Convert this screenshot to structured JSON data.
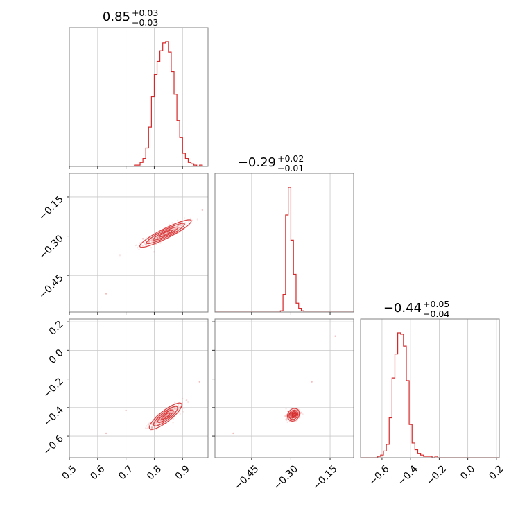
{
  "chart_data": {
    "type": "corner",
    "color": "#d62728",
    "params": [
      {
        "title": {
          "value": "0.85",
          "plus": "+0.03",
          "minus": "−0.03"
        },
        "range": [
          0.5,
          0.99
        ],
        "ticks": [
          0.5,
          0.6,
          0.7,
          0.8,
          0.9
        ],
        "tick_labels": [
          "0.5",
          "0.6",
          "0.7",
          "0.8",
          "0.9"
        ],
        "hist": {
          "bin_edges": [
            0.68,
            0.69,
            0.7,
            0.71,
            0.72,
            0.73,
            0.74,
            0.75,
            0.76,
            0.77,
            0.78,
            0.79,
            0.8,
            0.81,
            0.82,
            0.83,
            0.84,
            0.85,
            0.86,
            0.87,
            0.88,
            0.89,
            0.9,
            0.91,
            0.92,
            0.93,
            0.94,
            0.95,
            0.96,
            0.97,
            0.98
          ],
          "counts": [
            0,
            0,
            0,
            0,
            0,
            0.01,
            0.01,
            0.03,
            0.06,
            0.14,
            0.3,
            0.53,
            0.7,
            0.8,
            0.88,
            0.94,
            0.95,
            0.87,
            0.72,
            0.55,
            0.35,
            0.22,
            0.1,
            0.06,
            0.03,
            0.02,
            0.01,
            0,
            0.01,
            0
          ]
        }
      },
      {
        "title": {
          "value": "−0.29",
          "plus": "+0.02",
          "minus": "−0.01"
        },
        "range": [
          -0.59,
          -0.06
        ],
        "ticks": [
          -0.45,
          -0.3,
          -0.15
        ],
        "tick_labels": [
          "−0.45",
          "−0.30",
          "−0.15"
        ],
        "hist": {
          "bin_edges": [
            -0.34,
            -0.33,
            -0.32,
            -0.31,
            -0.3,
            -0.29,
            -0.28,
            -0.27,
            -0.26,
            -0.25,
            -0.24
          ],
          "counts": [
            0.01,
            0.14,
            0.77,
            0.99,
            0.57,
            0.3,
            0.07,
            0.03,
            0.01,
            0
          ]
        }
      },
      {
        "title": {
          "value": "−0.44",
          "plus": "+0.05",
          "minus": "−0.04"
        },
        "range": [
          -0.75,
          0.22
        ],
        "ticks": [
          -0.6,
          -0.4,
          -0.2,
          0.0,
          0.2
        ],
        "tick_labels": [
          "−0.6",
          "−0.4",
          "−0.2",
          "0.0",
          "0.2"
        ],
        "hist": {
          "bin_edges": [
            -0.67,
            -0.65,
            -0.63,
            -0.61,
            -0.59,
            -0.57,
            -0.55,
            -0.53,
            -0.51,
            -0.49,
            -0.47,
            -0.45,
            -0.43,
            -0.41,
            -0.39,
            -0.37,
            -0.35,
            -0.33,
            -0.31,
            -0.29,
            -0.27,
            -0.25,
            -0.23,
            -0.21,
            -0.19
          ],
          "counts": [
            0,
            0,
            0.01,
            0.02,
            0.05,
            0.1,
            0.3,
            0.6,
            0.78,
            0.94,
            0.93,
            0.84,
            0.58,
            0.25,
            0.11,
            0.06,
            0.03,
            0.02,
            0.01,
            0.01,
            0.01,
            0,
            0.01,
            0
          ]
        }
      }
    ],
    "scatter_2d": [
      {
        "x_param": 0,
        "y_param": 1,
        "center": [
          0.84,
          -0.29
        ],
        "slope": 0.55,
        "spread_along": 0.045,
        "spread_across": 0.01,
        "outliers": [
          [
            0.63,
            -0.52
          ],
          [
            0.97,
            -0.2
          ],
          [
            0.76,
            -0.31
          ]
        ]
      },
      {
        "x_param": 0,
        "y_param": 2,
        "center": [
          0.84,
          -0.46
        ],
        "slope": 1.55,
        "spread_along": 0.045,
        "spread_across": 0.012,
        "outliers": [
          [
            0.63,
            -0.58
          ],
          [
            0.96,
            -0.22
          ],
          [
            0.7,
            -0.42
          ]
        ]
      },
      {
        "x_param": 1,
        "y_param": 2,
        "center": [
          -0.29,
          -0.45
        ],
        "slope": 2.7,
        "spread_along": 0.018,
        "spread_across": 0.012,
        "outliers": [
          [
            -0.52,
            -0.58
          ],
          [
            -0.13,
            0.1
          ],
          [
            -0.22,
            -0.22
          ]
        ]
      }
    ]
  }
}
